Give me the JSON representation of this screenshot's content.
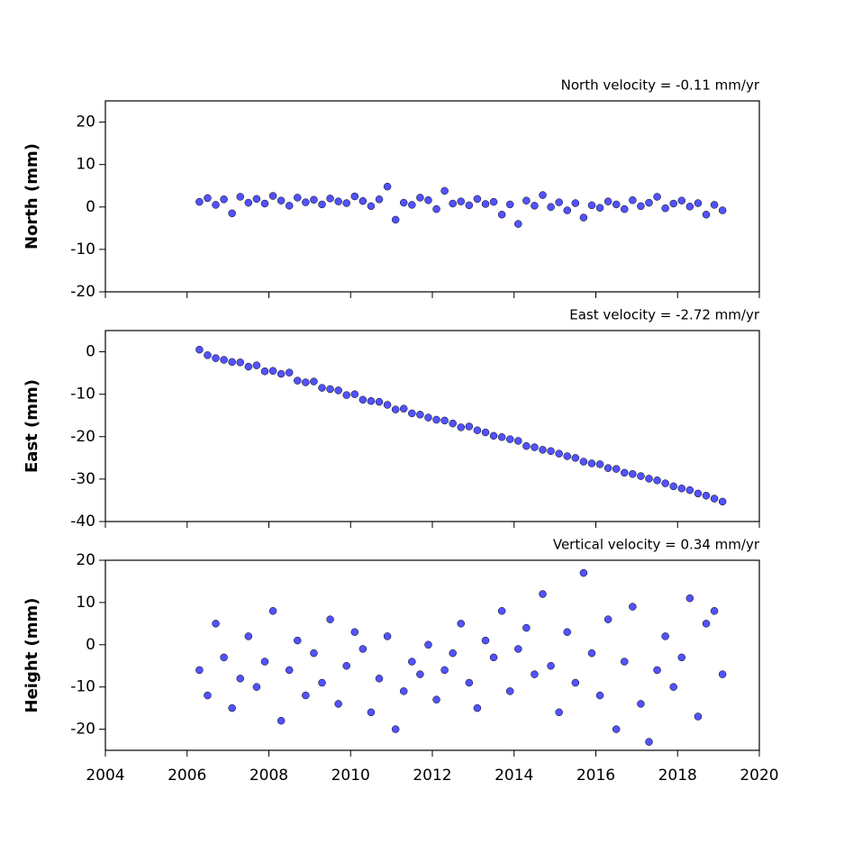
{
  "chart_data": [
    {
      "type": "scatter",
      "title": "North velocity = -0.11 mm/yr",
      "y_label": "North (mm)",
      "color": "#5252ff",
      "edgecolor": "#000000",
      "xlim": [
        2004,
        2020
      ],
      "xticks": [
        2004,
        2006,
        2008,
        2010,
        2012,
        2014,
        2016,
        2018,
        2020
      ],
      "ylim": [
        -20,
        25
      ],
      "yticks": [
        -20,
        -10,
        0,
        10,
        20
      ],
      "x": [
        2006.3,
        2006.5,
        2006.7,
        2006.9,
        2007.1,
        2007.3,
        2007.5,
        2007.7,
        2007.9,
        2008.1,
        2008.3,
        2008.5,
        2008.7,
        2008.9,
        2009.1,
        2009.3,
        2009.5,
        2009.7,
        2009.9,
        2010.1,
        2010.3,
        2010.5,
        2010.7,
        2010.9,
        2011.1,
        2011.3,
        2011.5,
        2011.7,
        2011.9,
        2012.1,
        2012.3,
        2012.5,
        2012.7,
        2012.9,
        2013.1,
        2013.3,
        2013.5,
        2013.7,
        2013.9,
        2014.1,
        2014.3,
        2014.5,
        2014.7,
        2014.9,
        2015.1,
        2015.3,
        2015.5,
        2015.7,
        2015.9,
        2016.1,
        2016.3,
        2016.5,
        2016.7,
        2016.9,
        2017.1,
        2017.3,
        2017.5,
        2017.7,
        2017.9,
        2018.1,
        2018.3,
        2018.5,
        2018.7,
        2018.9,
        2019.1
      ],
      "values": [
        1.2,
        2.1,
        0.5,
        1.8,
        -1.5,
        2.4,
        1.0,
        1.9,
        0.8,
        2.6,
        1.5,
        0.3,
        2.2,
        1.1,
        1.7,
        0.6,
        2.0,
        1.3,
        0.9,
        2.5,
        1.4,
        0.2,
        1.8,
        4.8,
        -3.0,
        1.0,
        0.5,
        2.2,
        1.6,
        -0.5,
        3.8,
        0.8,
        1.3,
        0.4,
        1.9,
        0.7,
        1.2,
        -1.8,
        0.6,
        -4.0,
        1.5,
        0.3,
        2.8,
        0.0,
        1.1,
        -0.8,
        0.9,
        -2.5,
        0.4,
        -0.2,
        1.3,
        0.6,
        -0.5,
        1.6,
        0.2,
        1.0,
        2.4,
        -0.3,
        0.8,
        1.5,
        0.1,
        0.9,
        -1.8,
        0.5,
        -0.8
      ]
    },
    {
      "type": "scatter",
      "title": "East velocity = -2.72 mm/yr",
      "y_label": "East (mm)",
      "color": "#5252ff",
      "edgecolor": "#000000",
      "xlim": [
        2004,
        2020
      ],
      "xticks": [
        2004,
        2006,
        2008,
        2010,
        2012,
        2014,
        2016,
        2018,
        2020
      ],
      "ylim": [
        -40,
        5
      ],
      "yticks": [
        -40,
        -30,
        -20,
        -10,
        0
      ],
      "x": [
        2006.3,
        2006.5,
        2006.7,
        2006.9,
        2007.1,
        2007.3,
        2007.5,
        2007.7,
        2007.9,
        2008.1,
        2008.3,
        2008.5,
        2008.7,
        2008.9,
        2009.1,
        2009.3,
        2009.5,
        2009.7,
        2009.9,
        2010.1,
        2010.3,
        2010.5,
        2010.7,
        2010.9,
        2011.1,
        2011.3,
        2011.5,
        2011.7,
        2011.9,
        2012.1,
        2012.3,
        2012.5,
        2012.7,
        2012.9,
        2013.1,
        2013.3,
        2013.5,
        2013.7,
        2013.9,
        2014.1,
        2014.3,
        2014.5,
        2014.7,
        2014.9,
        2015.1,
        2015.3,
        2015.5,
        2015.7,
        2015.9,
        2016.1,
        2016.3,
        2016.5,
        2016.7,
        2016.9,
        2017.1,
        2017.3,
        2017.5,
        2017.7,
        2017.9,
        2018.1,
        2018.3,
        2018.5,
        2018.7,
        2018.9,
        2019.1
      ],
      "values": [
        0.5,
        -0.8,
        -1.5,
        -1.9,
        -2.4,
        -2.5,
        -3.5,
        -3.2,
        -4.6,
        -4.5,
        -5.2,
        -4.9,
        -6.8,
        -7.2,
        -7.0,
        -8.5,
        -8.8,
        -9.1,
        -10.2,
        -10.0,
        -11.3,
        -11.6,
        -11.8,
        -12.5,
        -13.6,
        -13.4,
        -14.5,
        -14.8,
        -15.5,
        -16.0,
        -16.2,
        -16.9,
        -17.8,
        -17.6,
        -18.5,
        -19.0,
        -19.8,
        -20.1,
        -20.6,
        -21.0,
        -22.2,
        -22.5,
        -23.1,
        -23.4,
        -24.0,
        -24.6,
        -25.0,
        -25.9,
        -26.3,
        -26.5,
        -27.4,
        -27.6,
        -28.5,
        -28.8,
        -29.3,
        -29.9,
        -30.3,
        -31.0,
        -31.7,
        -32.2,
        -32.6,
        -33.4,
        -33.9,
        -34.6,
        -35.3
      ]
    },
    {
      "type": "scatter",
      "title": "Vertical velocity = 0.34 mm/yr",
      "y_label": "Height (mm)",
      "color": "#5252ff",
      "edgecolor": "#000000",
      "xlim": [
        2004,
        2020
      ],
      "xticks": [
        2004,
        2006,
        2008,
        2010,
        2012,
        2014,
        2016,
        2018,
        2020
      ],
      "ylim": [
        -25,
        20
      ],
      "yticks": [
        -20,
        -10,
        0,
        10,
        20
      ],
      "x": [
        2006.3,
        2006.5,
        2006.7,
        2006.9,
        2007.1,
        2007.3,
        2007.5,
        2007.7,
        2007.9,
        2008.1,
        2008.3,
        2008.5,
        2008.7,
        2008.9,
        2009.1,
        2009.3,
        2009.5,
        2009.7,
        2009.9,
        2010.1,
        2010.3,
        2010.5,
        2010.7,
        2010.9,
        2011.1,
        2011.3,
        2011.5,
        2011.7,
        2011.9,
        2012.1,
        2012.3,
        2012.5,
        2012.7,
        2012.9,
        2013.1,
        2013.3,
        2013.5,
        2013.7,
        2013.9,
        2014.1,
        2014.3,
        2014.5,
        2014.7,
        2014.9,
        2015.1,
        2015.3,
        2015.5,
        2015.7,
        2015.9,
        2016.1,
        2016.3,
        2016.5,
        2016.7,
        2016.9,
        2017.1,
        2017.3,
        2017.5,
        2017.7,
        2017.9,
        2018.1,
        2018.3,
        2018.5,
        2018.7,
        2018.9,
        2019.1
      ],
      "values": [
        -6,
        -12,
        5,
        -3,
        -15,
        -8,
        2,
        -10,
        -4,
        8,
        -18,
        -6,
        1,
        -12,
        -2,
        -9,
        6,
        -14,
        -5,
        3,
        -1,
        -16,
        -8,
        2,
        -20,
        -11,
        -4,
        -7,
        0,
        -13,
        -6,
        -2,
        5,
        -9,
        -15,
        1,
        -3,
        8,
        -11,
        -1,
        4,
        -7,
        12,
        -5,
        -16,
        3,
        -9,
        17,
        -2,
        -12,
        6,
        -20,
        -4,
        9,
        -14,
        -23,
        -6,
        2,
        -10,
        -3,
        11,
        -17,
        5,
        8,
        -7
      ]
    }
  ]
}
